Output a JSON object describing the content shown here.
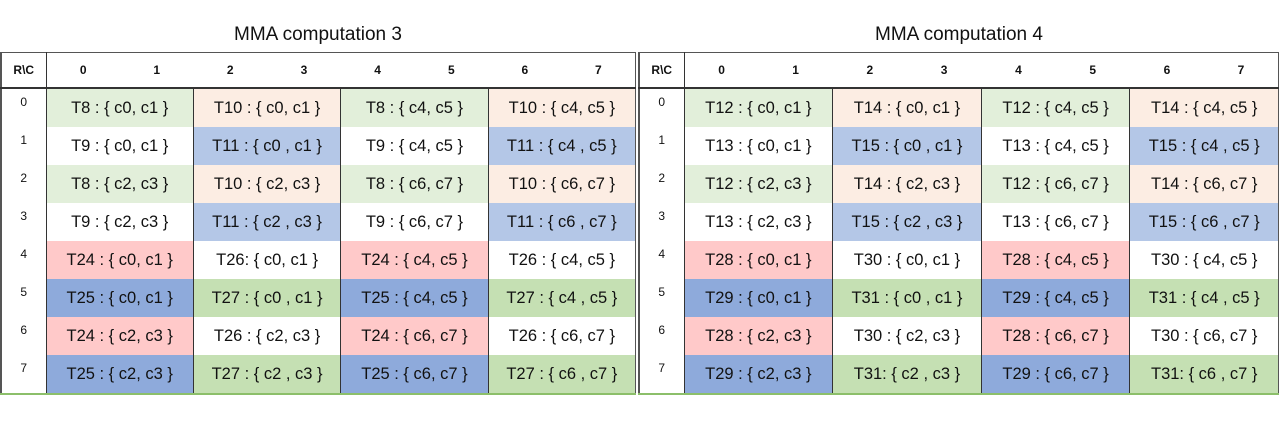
{
  "colors": {
    "lg": "#e2efda",
    "pe": "#fcede3",
    "lb": "#b4c7e7",
    "w": "#ffffff",
    "pk": "#ffc9c9",
    "db": "#8eaadb",
    "gr": "#c5e0b3"
  },
  "tables": [
    {
      "title": "MMA computation 3",
      "corner": "R\\C",
      "columns": [
        "0",
        "1",
        "2",
        "3",
        "4",
        "5",
        "6",
        "7"
      ],
      "rows": [
        {
          "label": "0",
          "cells": [
            {
              "text": "T8 : { c0, c1 }",
              "color": "lg"
            },
            {
              "text": "T10 : { c0, c1 }",
              "color": "pe"
            },
            {
              "text": "T8 : { c4, c5 }",
              "color": "lg"
            },
            {
              "text": "T10 : { c4, c5 }",
              "color": "pe"
            }
          ]
        },
        {
          "label": "1",
          "cells": [
            {
              "text": "T9 : { c0, c1 }",
              "color": "w"
            },
            {
              "text": "T11 : { c0 , c1 }",
              "color": "lb"
            },
            {
              "text": "T9 : { c4, c5 }",
              "color": "w"
            },
            {
              "text": "T11 : { c4 , c5 }",
              "color": "lb"
            }
          ]
        },
        {
          "label": "2",
          "cells": [
            {
              "text": "T8 : { c2, c3 }",
              "color": "lg"
            },
            {
              "text": "T10 : { c2, c3 }",
              "color": "pe"
            },
            {
              "text": "T8 : { c6, c7 }",
              "color": "lg"
            },
            {
              "text": "T10 : { c6, c7 }",
              "color": "pe"
            }
          ]
        },
        {
          "label": "3",
          "cells": [
            {
              "text": "T9 : { c2, c3 }",
              "color": "w"
            },
            {
              "text": "T11 : { c2 , c3 }",
              "color": "lb"
            },
            {
              "text": "T9 : { c6, c7 }",
              "color": "w"
            },
            {
              "text": "T11 : { c6 , c7 }",
              "color": "lb"
            }
          ]
        },
        {
          "label": "4",
          "cells": [
            {
              "text": "T24 : { c0, c1 }",
              "color": "pk"
            },
            {
              "text": "T26: { c0, c1 }",
              "color": "w"
            },
            {
              "text": "T24 : { c4, c5 }",
              "color": "pk"
            },
            {
              "text": "T26 : { c4, c5 }",
              "color": "w"
            }
          ]
        },
        {
          "label": "5",
          "cells": [
            {
              "text": "T25 : { c0, c1 }",
              "color": "db"
            },
            {
              "text": "T27 : { c0 , c1 }",
              "color": "gr"
            },
            {
              "text": "T25 : { c4, c5 }",
              "color": "db"
            },
            {
              "text": "T27 : { c4 , c5 }",
              "color": "gr"
            }
          ]
        },
        {
          "label": "6",
          "cells": [
            {
              "text": "T24 : { c2, c3 }",
              "color": "pk"
            },
            {
              "text": "T26 : { c2, c3 }",
              "color": "w"
            },
            {
              "text": "T24 : { c6, c7 }",
              "color": "pk"
            },
            {
              "text": "T26 : { c6, c7 }",
              "color": "w"
            }
          ]
        },
        {
          "label": "7",
          "cells": [
            {
              "text": "T25 : { c2, c3 }",
              "color": "db"
            },
            {
              "text": "T27 : { c2 , c3 }",
              "color": "gr"
            },
            {
              "text": "T25 : { c6, c7 }",
              "color": "db"
            },
            {
              "text": "T27 : { c6 , c7 }",
              "color": "gr"
            }
          ]
        }
      ]
    },
    {
      "title": "MMA computation 4",
      "corner": "R\\C",
      "columns": [
        "0",
        "1",
        "2",
        "3",
        "4",
        "5",
        "6",
        "7"
      ],
      "rows": [
        {
          "label": "0",
          "cells": [
            {
              "text": "T12 : { c0, c1 }",
              "color": "lg"
            },
            {
              "text": "T14 : { c0, c1 }",
              "color": "pe"
            },
            {
              "text": "T12 : { c4, c5 }",
              "color": "lg"
            },
            {
              "text": "T14 : { c4, c5 }",
              "color": "pe"
            }
          ]
        },
        {
          "label": "1",
          "cells": [
            {
              "text": "T13 : { c0, c1 }",
              "color": "w"
            },
            {
              "text": "T15 : { c0 , c1 }",
              "color": "lb"
            },
            {
              "text": "T13 : { c4, c5 }",
              "color": "w"
            },
            {
              "text": "T15 : { c4 , c5 }",
              "color": "lb"
            }
          ]
        },
        {
          "label": "2",
          "cells": [
            {
              "text": "T12 : { c2, c3 }",
              "color": "lg"
            },
            {
              "text": "T14 : { c2, c3 }",
              "color": "pe"
            },
            {
              "text": "T12 : { c6, c7 }",
              "color": "lg"
            },
            {
              "text": "T14 : { c6, c7 }",
              "color": "pe"
            }
          ]
        },
        {
          "label": "3",
          "cells": [
            {
              "text": "T13 : { c2, c3 }",
              "color": "w"
            },
            {
              "text": "T15 : { c2 , c3 }",
              "color": "lb"
            },
            {
              "text": "T13 : { c6, c7 }",
              "color": "w"
            },
            {
              "text": "T15 : { c6 , c7 }",
              "color": "lb"
            }
          ]
        },
        {
          "label": "4",
          "cells": [
            {
              "text": "T28 : { c0, c1 }",
              "color": "pk"
            },
            {
              "text": "T30 : { c0, c1 }",
              "color": "w"
            },
            {
              "text": "T28 : { c4, c5 }",
              "color": "pk"
            },
            {
              "text": "T30 : { c4, c5 }",
              "color": "w"
            }
          ]
        },
        {
          "label": "5",
          "cells": [
            {
              "text": "T29 : { c0, c1 }",
              "color": "db"
            },
            {
              "text": "T31 : { c0 , c1 }",
              "color": "gr"
            },
            {
              "text": "T29 : { c4, c5 }",
              "color": "db"
            },
            {
              "text": "T31 : { c4 , c5 }",
              "color": "gr"
            }
          ]
        },
        {
          "label": "6",
          "cells": [
            {
              "text": "T28 : { c2, c3 }",
              "color": "pk"
            },
            {
              "text": "T30 : { c2, c3 }",
              "color": "w"
            },
            {
              "text": "T28 : { c6, c7 }",
              "color": "pk"
            },
            {
              "text": "T30 : { c6, c7 }",
              "color": "w"
            }
          ]
        },
        {
          "label": "7",
          "cells": [
            {
              "text": "T29 : { c2, c3 }",
              "color": "db"
            },
            {
              "text": "T31: { c2 , c3 }",
              "color": "gr"
            },
            {
              "text": "T29 : { c6, c7 }",
              "color": "db"
            },
            {
              "text": "T31: { c6 , c7 }",
              "color": "gr"
            }
          ]
        }
      ]
    }
  ]
}
